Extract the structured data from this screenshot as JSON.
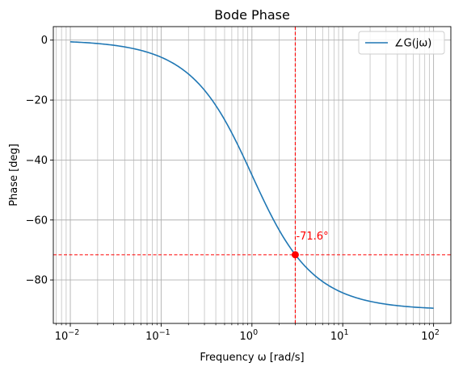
{
  "chart_data": {
    "type": "line",
    "title": "Bode Phase",
    "xlabel": "Frequency ω [rad/s]",
    "ylabel": "Phase [deg]",
    "xscale": "log",
    "xlim": [
      0.0065,
      155
    ],
    "ylim": [
      -94.5,
      4.5
    ],
    "x_ticks": [
      {
        "value": 0.01,
        "base": "10",
        "exp": "−2"
      },
      {
        "value": 0.1,
        "base": "10",
        "exp": "−1"
      },
      {
        "value": 1,
        "base": "10",
        "exp": "0"
      },
      {
        "value": 10,
        "base": "10",
        "exp": "1"
      },
      {
        "value": 100,
        "base": "10",
        "exp": "2"
      }
    ],
    "y_ticks": [
      {
        "value": 0,
        "label": "0"
      },
      {
        "value": -20,
        "label": "−20"
      },
      {
        "value": -40,
        "label": "−40"
      },
      {
        "value": -60,
        "label": "−60"
      },
      {
        "value": -80,
        "label": "−80"
      }
    ],
    "grid": "both (major and minor)",
    "legend": "top-right",
    "series": [
      {
        "name": "∠G(jω)",
        "color": "#1f77b4",
        "x": [
          0.01,
          0.02,
          0.05,
          0.1,
          0.2,
          0.3,
          0.5,
          0.7,
          1,
          1.5,
          2,
          3,
          5,
          7,
          10,
          20,
          50,
          100
        ],
        "y": [
          -0.6,
          -1.1,
          -2.9,
          -5.7,
          -11.3,
          -16.7,
          -26.6,
          -35.0,
          -45.0,
          -56.3,
          -63.4,
          -71.6,
          -78.7,
          -81.9,
          -84.3,
          -87.1,
          -88.9,
          -89.4
        ]
      }
    ],
    "marker": {
      "x": 3,
      "y": -71.6,
      "label": "-71.6°",
      "color": "#ff0000"
    }
  }
}
